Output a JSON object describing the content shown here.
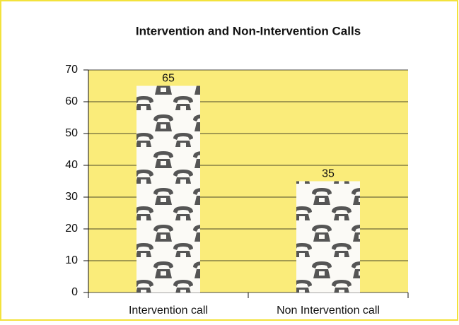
{
  "chart_data": {
    "type": "bar",
    "title": "Intervention and Non-Intervention Calls",
    "categories": [
      "Intervention call",
      "Non Intervention call"
    ],
    "values": [
      65,
      35
    ],
    "color": "#fbfaf6",
    "ylim": [
      0,
      70
    ],
    "yticks": [
      0,
      10,
      20,
      30,
      40,
      50,
      60,
      70
    ],
    "grid": true
  }
}
